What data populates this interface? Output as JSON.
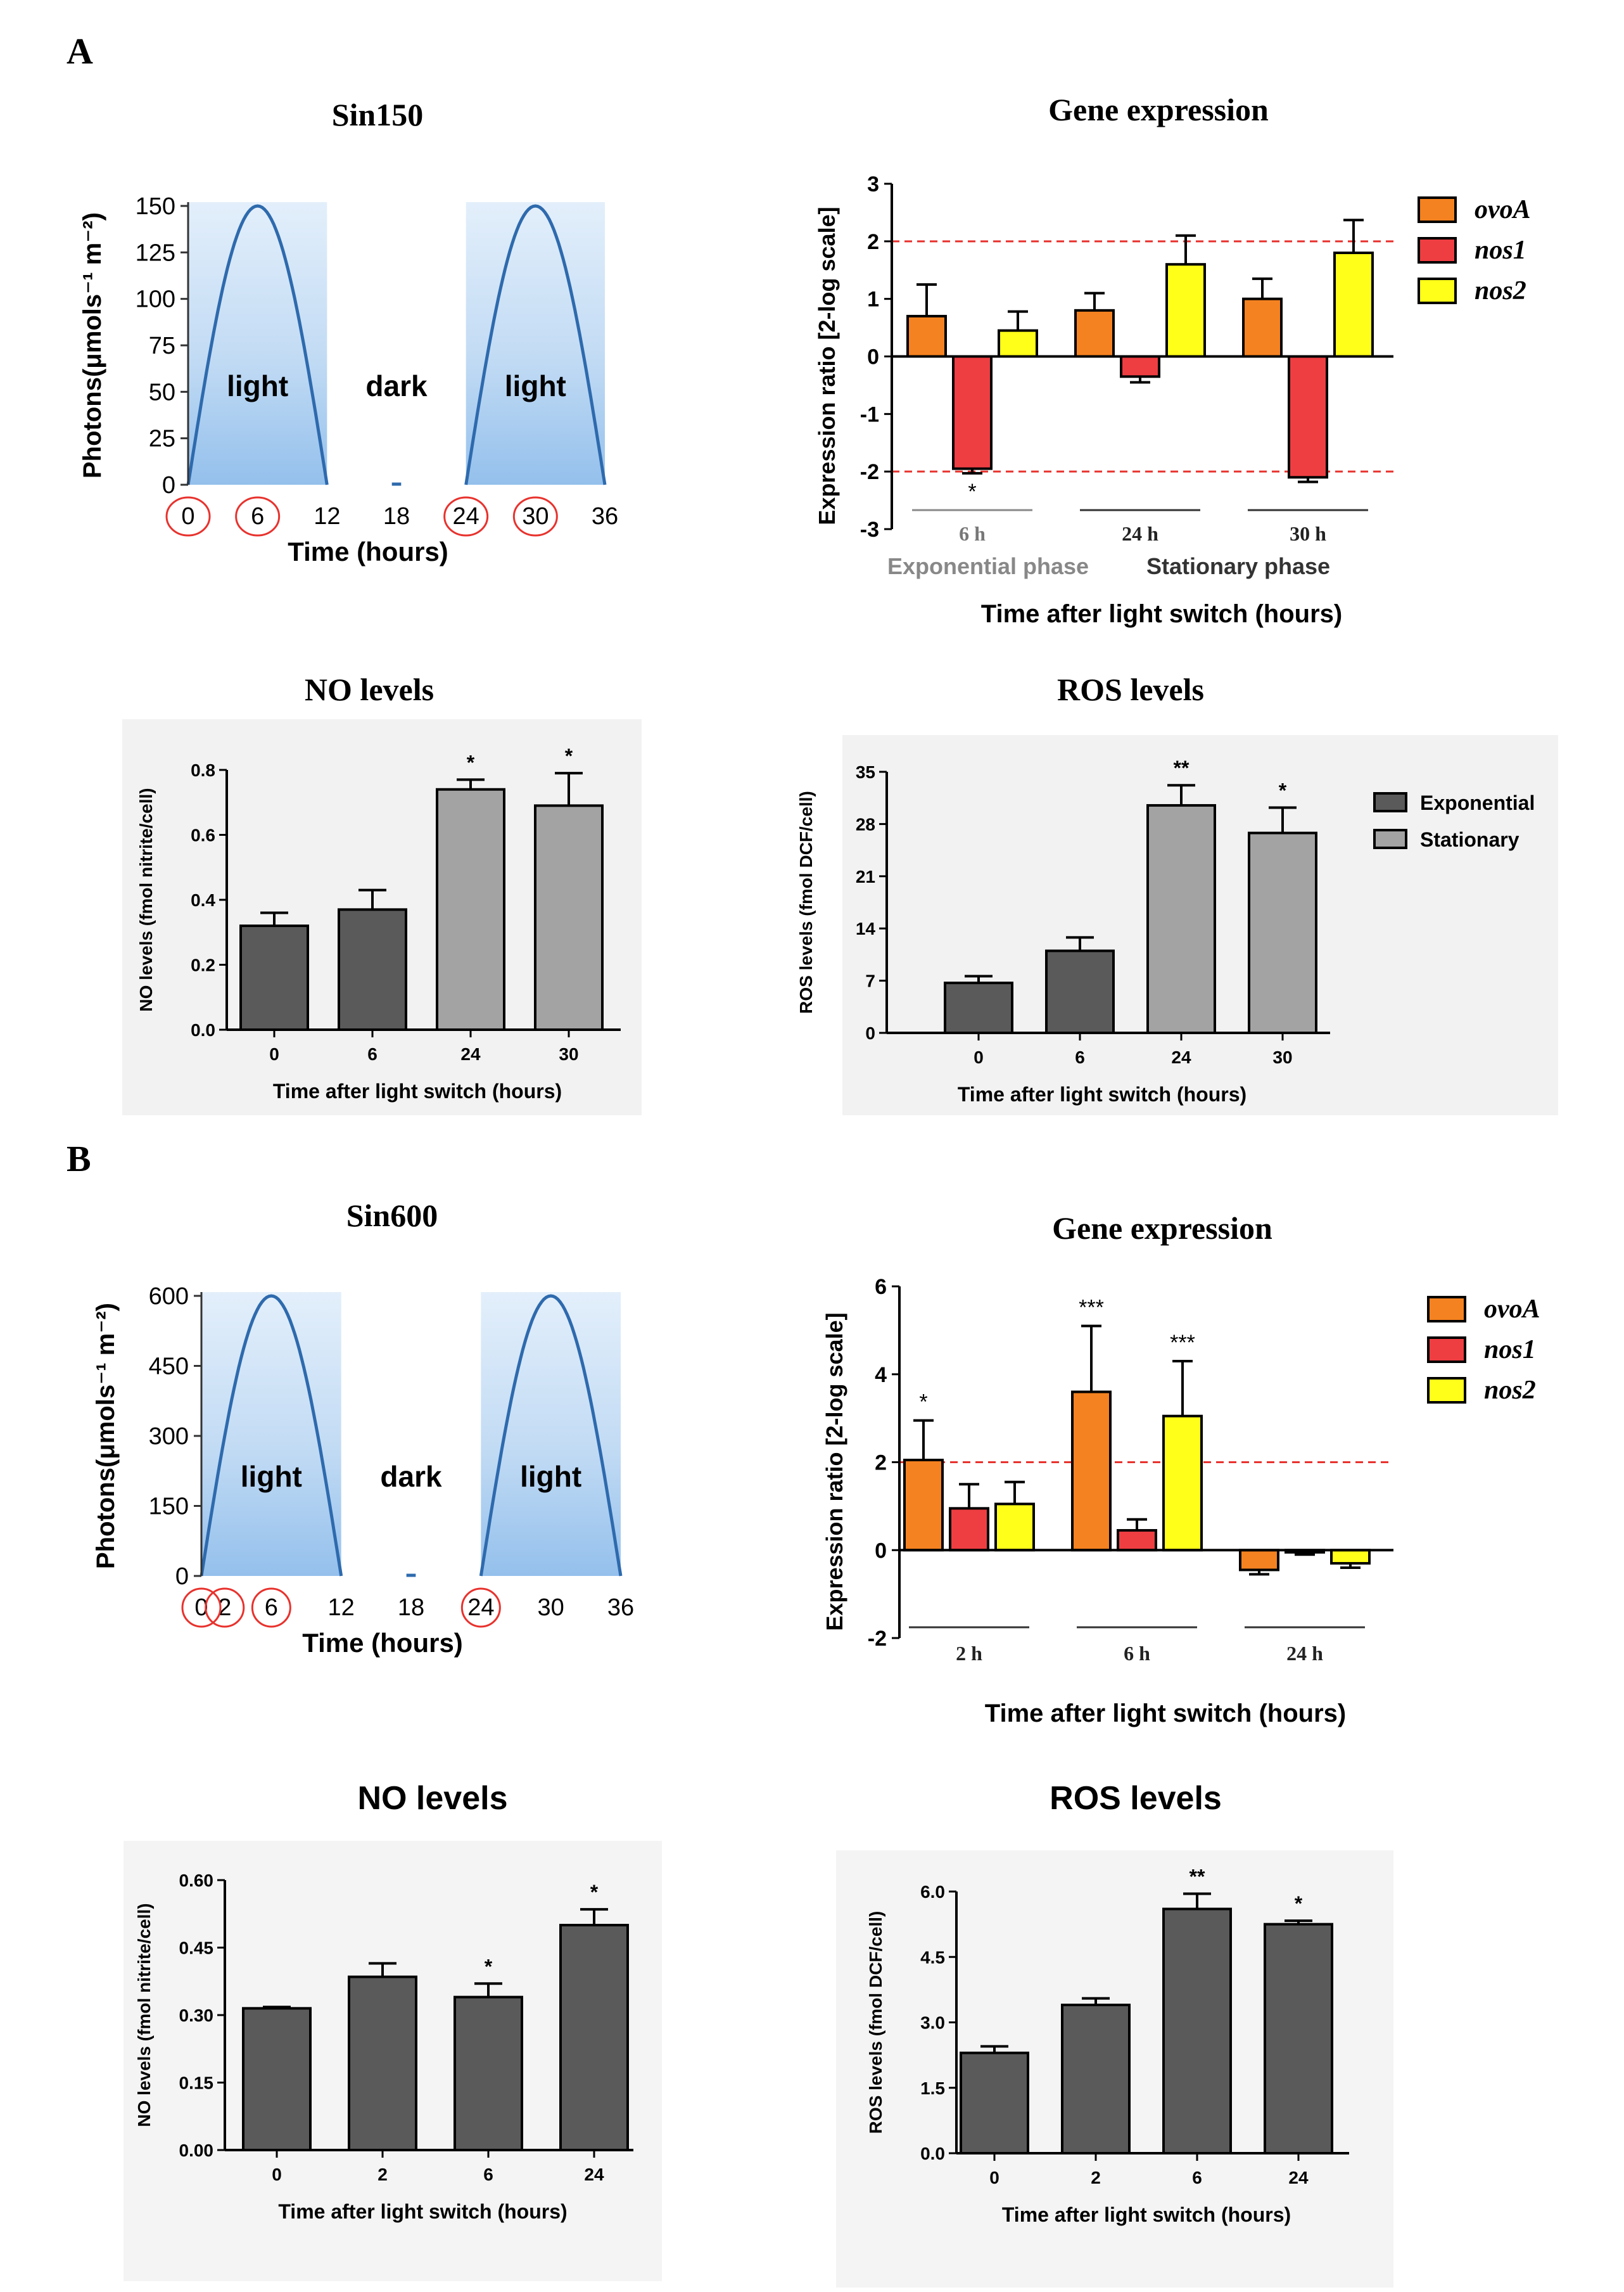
{
  "figure": {
    "label_A": "A",
    "label_B": "B"
  },
  "chart_data": [
    {
      "id": "a_sin150",
      "type": "area",
      "title": "Sin150",
      "xlabel": "Time (hours)",
      "ylabel": "Photons(μmols⁻¹ m⁻²)",
      "xlim": [
        0,
        36
      ],
      "ylim": [
        0,
        150
      ],
      "x_ticks": [
        0,
        6,
        12,
        18,
        24,
        30,
        36
      ],
      "y_ticks": [
        0,
        25,
        50,
        75,
        100,
        125,
        150
      ],
      "circled_ticks": [
        0,
        6,
        24,
        30
      ],
      "peak": 150,
      "light_periods": [
        [
          0,
          12
        ],
        [
          24,
          36
        ]
      ],
      "region_labels": [
        {
          "text": "light",
          "x": 6
        },
        {
          "text": "dark",
          "x": 18
        },
        {
          "text": "light",
          "x": 30
        }
      ]
    },
    {
      "id": "a_gene",
      "type": "bar",
      "title": "Gene expression",
      "xlabel": "Time after light switch (hours)",
      "ylabel": "Expression ratio [2-log scale]",
      "ylim": [
        -3,
        3
      ],
      "y_ticks": [
        -3,
        -2,
        -1,
        0,
        1,
        2,
        3
      ],
      "threshold_lines": [
        2,
        -2
      ],
      "groups": [
        "6 h",
        "24 h",
        "30 h"
      ],
      "phase_labels": [
        "Exponential phase",
        "Stationary  phase"
      ],
      "series": [
        {
          "name": "ovoA",
          "color": "#f58220",
          "values": [
            0.7,
            0.8,
            1.0
          ],
          "errors": [
            0.55,
            0.3,
            0.35
          ]
        },
        {
          "name": "nos1",
          "color": "#ee3e42",
          "values": [
            -1.95,
            -0.35,
            -2.1
          ],
          "errors": [
            0.08,
            0.1,
            0.08
          ]
        },
        {
          "name": "nos2",
          "color": "#ffff1a",
          "values": [
            0.45,
            1.6,
            1.8
          ],
          "errors": [
            0.33,
            0.5,
            0.57
          ]
        }
      ],
      "annotations": [
        {
          "text": "*",
          "group": 0,
          "series": 1
        }
      ]
    },
    {
      "id": "a_no",
      "type": "bar",
      "title": "NO levels",
      "xlabel": "Time after light switch (hours)",
      "ylabel": "NO levels (fmol nitrite/cell)",
      "ylim": [
        0,
        0.8
      ],
      "y_ticks": [
        "0.0",
        "0.2",
        "0.4",
        "0.6",
        "0.8"
      ],
      "categories": [
        "0",
        "6",
        "24",
        "30"
      ],
      "values": [
        0.32,
        0.37,
        0.74,
        0.69
      ],
      "errors": [
        0.04,
        0.06,
        0.03,
        0.1
      ],
      "bar_colors": [
        "#5a5a5a",
        "#5a5a5a",
        "#a3a3a3",
        "#a3a3a3"
      ],
      "stars": [
        "",
        "",
        "*",
        "*"
      ]
    },
    {
      "id": "a_ros",
      "type": "bar",
      "title": "ROS levels",
      "xlabel": "Time after light switch (hours)",
      "ylabel": "ROS levels (fmol DCF/cell)",
      "ylim": [
        0,
        35
      ],
      "y_ticks": [
        "0",
        "7",
        "14",
        "21",
        "28",
        "35"
      ],
      "categories": [
        "0",
        "6",
        "24",
        "30"
      ],
      "values": [
        6.7,
        11,
        30.5,
        26.8
      ],
      "errors": [
        0.9,
        1.8,
        2.7,
        3.4
      ],
      "bar_colors": [
        "#5a5a5a",
        "#5a5a5a",
        "#a3a3a3",
        "#a3a3a3"
      ],
      "stars": [
        "",
        "",
        "**",
        "*"
      ],
      "legend": [
        {
          "name": "Exponential",
          "color": "#5a5a5a"
        },
        {
          "name": "Stationary",
          "color": "#a3a3a3"
        }
      ]
    },
    {
      "id": "b_sin600",
      "type": "area",
      "title": "Sin600",
      "xlabel": "Time (hours)",
      "ylabel": "Photons(μmols⁻¹ m⁻²)",
      "xlim": [
        0,
        36
      ],
      "ylim": [
        0,
        600
      ],
      "x_ticks": [
        0,
        2,
        6,
        12,
        18,
        24,
        30,
        36
      ],
      "y_ticks": [
        0,
        150,
        300,
        450,
        600
      ],
      "circled_ticks": [
        0,
        2,
        6,
        24
      ],
      "peak": 600,
      "light_periods": [
        [
          0,
          12
        ],
        [
          24,
          36
        ]
      ],
      "region_labels": [
        {
          "text": "light",
          "x": 6
        },
        {
          "text": "dark",
          "x": 18
        },
        {
          "text": "light",
          "x": 30
        }
      ]
    },
    {
      "id": "b_gene",
      "type": "bar",
      "title": "Gene expression",
      "xlabel": "Time after light switch (hours)",
      "ylabel": "Expression ratio [2-log scale]",
      "ylim": [
        -2,
        6
      ],
      "y_ticks": [
        -2,
        0,
        2,
        4,
        6
      ],
      "threshold_lines": [
        2
      ],
      "groups": [
        "2 h",
        "6 h",
        "24 h"
      ],
      "series": [
        {
          "name": "ovoA",
          "color": "#f58220",
          "values": [
            2.05,
            3.6,
            -0.45
          ],
          "errors": [
            0.9,
            1.5,
            0.1
          ]
        },
        {
          "name": "nos1",
          "color": "#ee3e42",
          "values": [
            0.95,
            0.45,
            -0.05
          ],
          "errors": [
            0.55,
            0.25,
            0.05
          ]
        },
        {
          "name": "nos2",
          "color": "#ffff1a",
          "values": [
            1.05,
            3.05,
            -0.3
          ],
          "errors": [
            0.5,
            1.25,
            0.1
          ]
        }
      ],
      "annotations": [
        {
          "text": "*",
          "group": 0,
          "series": 0
        },
        {
          "text": "***",
          "group": 1,
          "series": 0
        },
        {
          "text": "***",
          "group": 1,
          "series": 2
        }
      ]
    },
    {
      "id": "b_no",
      "type": "bar",
      "title": "NO levels",
      "xlabel": "Time after light switch (hours)",
      "ylabel": "NO levels (fmol nitrite/cell)",
      "ylim": [
        0,
        0.6
      ],
      "y_ticks": [
        "0.00",
        "0.15",
        "0.30",
        "0.45",
        "0.60"
      ],
      "categories": [
        "0",
        "2",
        "6",
        "24"
      ],
      "values": [
        0.315,
        0.385,
        0.34,
        0.5
      ],
      "errors": [
        0.003,
        0.03,
        0.03,
        0.035
      ],
      "bar_colors": [
        "#5a5a5a",
        "#5a5a5a",
        "#5a5a5a",
        "#5a5a5a"
      ],
      "stars": [
        "",
        "",
        "*",
        "*"
      ]
    },
    {
      "id": "b_ros",
      "type": "bar",
      "title": "ROS levels",
      "xlabel": "Time after light switch (hours)",
      "ylabel": "ROS levels (fmol DCF/cell)",
      "ylim": [
        0,
        6
      ],
      "y_ticks": [
        "0.0",
        "1.5",
        "3.0",
        "4.5",
        "6.0"
      ],
      "categories": [
        "0",
        "2",
        "6",
        "24"
      ],
      "values": [
        2.3,
        3.4,
        5.6,
        5.25
      ],
      "errors": [
        0.15,
        0.15,
        0.35,
        0.08
      ],
      "bar_colors": [
        "#5a5a5a",
        "#5a5a5a",
        "#5a5a5a",
        "#5a5a5a"
      ],
      "stars": [
        "",
        "",
        "**",
        "*"
      ]
    }
  ]
}
